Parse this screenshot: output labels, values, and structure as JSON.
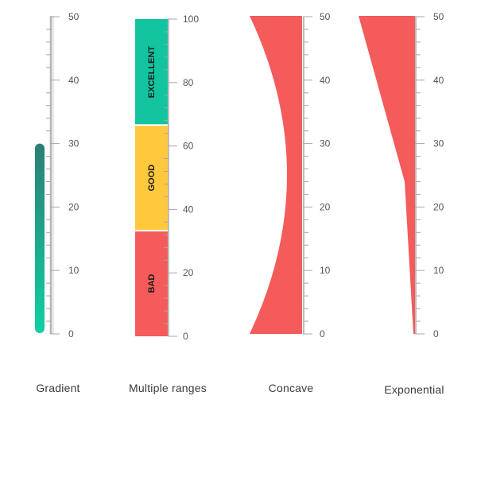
{
  "gauges": [
    {
      "title": "Gradient",
      "scale": {
        "min": 0,
        "max": 50,
        "labels": [
          "0",
          "10",
          "20",
          "30",
          "40",
          "50"
        ]
      },
      "bar": {
        "value": 30,
        "colors": [
          "#10cfa4",
          "#2a7f74"
        ]
      }
    },
    {
      "title": "Multiple ranges",
      "scale": {
        "min": 0,
        "max": 100,
        "labels": [
          "0",
          "20",
          "40",
          "60",
          "80",
          "100"
        ]
      },
      "ranges": [
        {
          "start": 0,
          "end": 33.3,
          "label": "BAD",
          "color": "#f45b5b"
        },
        {
          "start": 33.3,
          "end": 66.6,
          "label": "GOOD",
          "color": "#ffc83d"
        },
        {
          "start": 66.6,
          "end": 100,
          "label": "EXCELLENT",
          "color": "#12c5a0"
        }
      ]
    },
    {
      "title": "Concave",
      "scale": {
        "min": 0,
        "max": 50,
        "labels": [
          "0",
          "10",
          "20",
          "30",
          "40",
          "50"
        ]
      },
      "shape": {
        "color": "#f45b5b"
      }
    },
    {
      "title": "Exponential",
      "scale": {
        "min": 0,
        "max": 50,
        "labels": [
          "0",
          "10",
          "20",
          "30",
          "40",
          "50"
        ]
      },
      "shape": {
        "color": "#f45b5b",
        "knee_value": 24
      }
    }
  ],
  "colors": {
    "axis": "#a7a7a7",
    "track": "#e6e6e6",
    "text": "#3b3b3b"
  }
}
